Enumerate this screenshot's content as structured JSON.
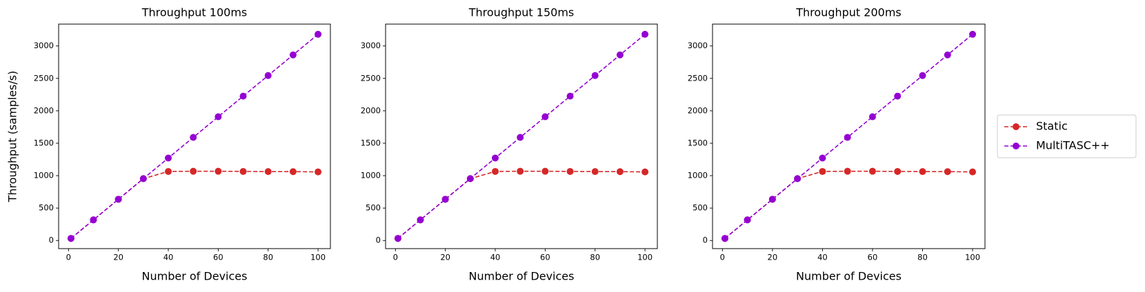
{
  "chart_data": [
    {
      "type": "line",
      "title": "Throughput 100ms",
      "xlabel": "Number of Devices",
      "ylabel": "Throughput (samples/s)",
      "x": [
        1,
        10,
        20,
        30,
        40,
        50,
        60,
        70,
        80,
        90,
        100
      ],
      "series": [
        {
          "name": "Static",
          "color": "#d62728",
          "values": [
            32,
            318,
            636,
            954,
            1065,
            1068,
            1068,
            1065,
            1063,
            1062,
            1058
          ]
        },
        {
          "name": "MultiTASC++",
          "color": "#9400d3",
          "values": [
            32,
            318,
            636,
            954,
            1272,
            1590,
            1908,
            2226,
            2544,
            2862,
            3180
          ]
        }
      ],
      "xlim": [
        -3.95,
        104.95
      ],
      "ylim": [
        -125,
        3337
      ],
      "xticks": [
        0,
        20,
        40,
        60,
        80,
        100
      ],
      "yticks": [
        0,
        500,
        1000,
        1500,
        2000,
        2500,
        3000
      ]
    },
    {
      "type": "line",
      "title": "Throughput 150ms",
      "xlabel": "Number of Devices",
      "x": [
        1,
        10,
        20,
        30,
        40,
        50,
        60,
        70,
        80,
        90,
        100
      ],
      "series": [
        {
          "color": "#d62728",
          "values": [
            32,
            318,
            636,
            954,
            1065,
            1068,
            1068,
            1065,
            1063,
            1062,
            1058
          ]
        },
        {
          "color": "#9400d3",
          "values": [
            32,
            318,
            636,
            954,
            1272,
            1590,
            1908,
            2226,
            2544,
            2862,
            3180
          ]
        }
      ],
      "xlim": [
        -3.95,
        104.95
      ],
      "ylim": [
        -125,
        3337
      ],
      "xticks": [
        0,
        20,
        40,
        60,
        80,
        100
      ],
      "yticks": [
        0,
        500,
        1000,
        1500,
        2000,
        2500,
        3000
      ]
    },
    {
      "type": "line",
      "title": "Throughput 200ms",
      "xlabel": "Number of Devices",
      "x": [
        1,
        10,
        20,
        30,
        40,
        50,
        60,
        70,
        80,
        90,
        100
      ],
      "series": [
        {
          "color": "#d62728",
          "values": [
            32,
            318,
            636,
            954,
            1065,
            1068,
            1068,
            1065,
            1063,
            1062,
            1058
          ]
        },
        {
          "color": "#9400d3",
          "values": [
            32,
            318,
            636,
            954,
            1272,
            1590,
            1908,
            2226,
            2544,
            2862,
            3180
          ]
        }
      ],
      "xlim": [
        -3.95,
        104.95
      ],
      "ylim": [
        -125,
        3337
      ],
      "xticks": [
        0,
        20,
        40,
        60,
        80,
        100
      ],
      "yticks": [
        0,
        500,
        1000,
        1500,
        2000,
        2500,
        3000
      ]
    }
  ]
}
